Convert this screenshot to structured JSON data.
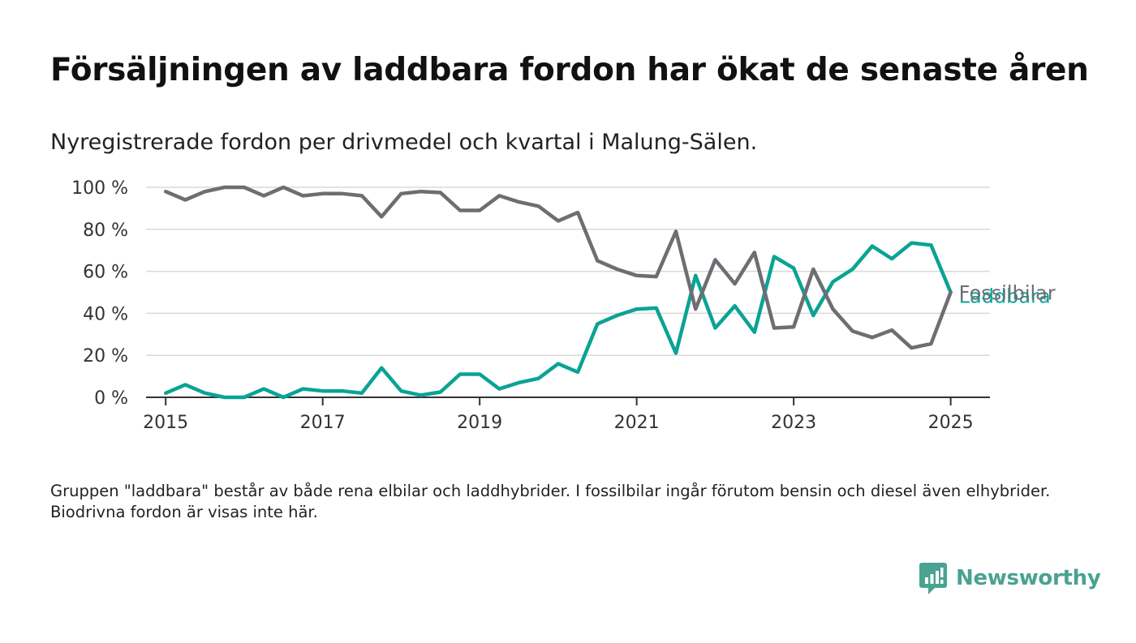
{
  "title": "Försäljningen av laddbara fordon har ökat de senaste åren",
  "subtitle": "Nyregistrerade fordon per drivmedel och kvartal i Malung-Sälen.",
  "note": "Gruppen \"laddbara\" består av både rena elbilar och laddhybrider. I fossilbilar ingår förutom bensin och diesel även elhybrider. Biodrivna fordon är visas inte här.",
  "brand": {
    "name": "Newsworthy",
    "icon": "newsworthy-logo-icon",
    "color": "#4aa291"
  },
  "chart_data": {
    "type": "line",
    "x_unit": "quarter",
    "x_start": 2015.0,
    "x_step": 0.25,
    "xlim": [
      2014.75,
      2025.5
    ],
    "ylim": [
      0,
      100
    ],
    "x_ticks": [
      2015,
      2017,
      2019,
      2021,
      2023,
      2025
    ],
    "y_ticks": [
      0,
      20,
      40,
      60,
      80,
      100
    ],
    "y_tick_labels": [
      "0 %",
      "20 %",
      "40 %",
      "60 %",
      "80 %",
      "100 %"
    ],
    "grid": true,
    "series": [
      {
        "name": "Fossilbilar",
        "color": "#6e6d73",
        "values": [
          98,
          94,
          98,
          100,
          100,
          96,
          100,
          96,
          97,
          97,
          96,
          86,
          97,
          98,
          97.5,
          89,
          89,
          96,
          93,
          91,
          84,
          88,
          65,
          61,
          58,
          57.5,
          79,
          42,
          65.5,
          54,
          69,
          33,
          33.5,
          61,
          42,
          31.5,
          28.5,
          32,
          23.5,
          25.5,
          50
        ]
      },
      {
        "name": "Laddbara",
        "color": "#0aa395",
        "values": [
          2,
          6,
          2,
          0,
          0,
          4,
          0,
          4,
          3,
          3,
          2,
          14,
          3,
          1,
          2.5,
          11,
          11,
          4,
          7,
          9,
          16,
          12,
          35,
          39,
          42,
          42.5,
          21,
          58,
          33,
          43.5,
          31,
          67,
          61.5,
          39,
          55,
          61,
          72,
          66,
          73.5,
          72.5,
          50
        ]
      }
    ]
  }
}
